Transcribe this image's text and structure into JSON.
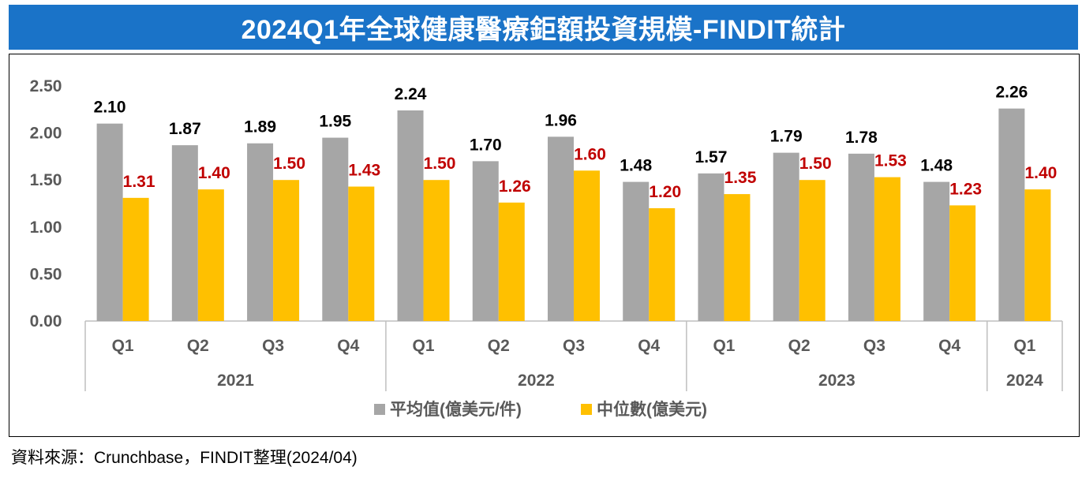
{
  "title": "2024Q1年全球健康醫療鉅額投資規模-FINDIT統計",
  "source": "資料來源：Crunchbase，FINDIT整理(2024/04)",
  "chart_data": {
    "type": "bar",
    "categories": [
      "Q1",
      "Q2",
      "Q3",
      "Q4",
      "Q1",
      "Q2",
      "Q3",
      "Q4",
      "Q1",
      "Q2",
      "Q3",
      "Q4",
      "Q1"
    ],
    "groups": [
      {
        "label": "2021",
        "count": 4
      },
      {
        "label": "2022",
        "count": 4
      },
      {
        "label": "2023",
        "count": 4
      },
      {
        "label": "2024",
        "count": 1
      }
    ],
    "series": [
      {
        "name": "平均值(億美元/件)",
        "color": "#a6a6a6",
        "label_color": "#000000",
        "values": [
          2.1,
          1.87,
          1.89,
          1.95,
          2.24,
          1.7,
          1.96,
          1.48,
          1.57,
          1.79,
          1.78,
          1.48,
          2.26
        ]
      },
      {
        "name": "中位數(億美元)",
        "color": "#ffc000",
        "label_color": "#c00000",
        "values": [
          1.31,
          1.4,
          1.5,
          1.43,
          1.5,
          1.26,
          1.6,
          1.2,
          1.35,
          1.5,
          1.53,
          1.23,
          1.4
        ]
      }
    ],
    "yticks": [
      "0.00",
      "0.50",
      "1.00",
      "1.50",
      "2.00",
      "2.50"
    ],
    "ylim": [
      0,
      2.5
    ],
    "grid": false,
    "legend_position": "bottom"
  }
}
